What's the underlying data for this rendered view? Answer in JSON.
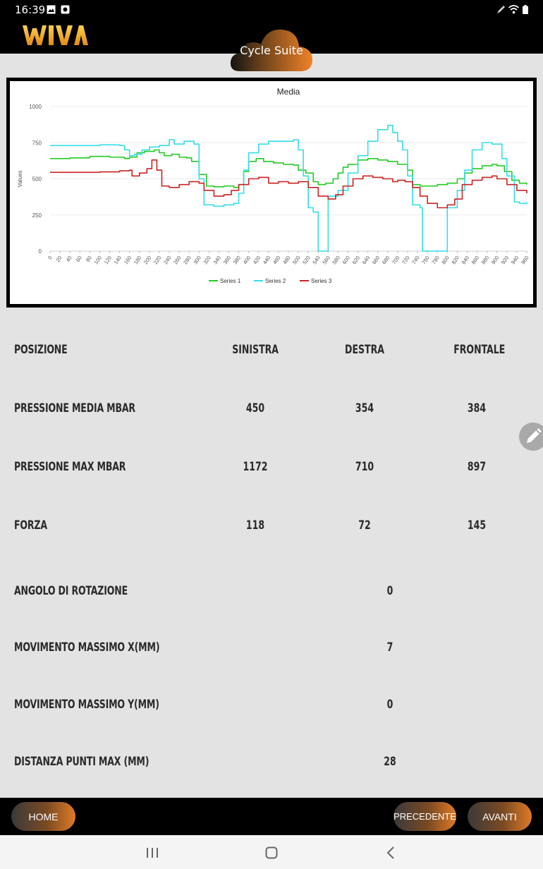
{
  "status_bar": {
    "time": "16:39",
    "left_icons": [
      "image-icon",
      "record-icon"
    ],
    "right_icons": [
      "pencil-icon",
      "wifi-icon",
      "battery-icon"
    ]
  },
  "header": {
    "logo_text": "WIVA",
    "app_badge": "Cycle Suite",
    "accent_color": "#f0a02a"
  },
  "chart_data": {
    "type": "line",
    "title": "Media",
    "ylabel": "Values",
    "xlabel": "",
    "ylim": [
      0,
      1000
    ],
    "yticks": [
      0,
      250,
      500,
      750,
      1000
    ],
    "xlim": [
      0,
      960
    ],
    "xticks": [
      0,
      20,
      40,
      60,
      80,
      100,
      120,
      140,
      160,
      180,
      200,
      220,
      240,
      260,
      280,
      300,
      320,
      340,
      360,
      380,
      400,
      420,
      440,
      460,
      480,
      500,
      520,
      540,
      560,
      580,
      600,
      620,
      640,
      660,
      680,
      700,
      720,
      740,
      760,
      780,
      800,
      820,
      840,
      860,
      880,
      900,
      920,
      940,
      960
    ],
    "grid": true,
    "legend_position": "bottom",
    "series": [
      {
        "name": "Series 1",
        "color": "#22cc22",
        "points": [
          [
            0,
            640
          ],
          [
            40,
            645
          ],
          [
            80,
            655
          ],
          [
            120,
            650
          ],
          [
            150,
            640
          ],
          [
            160,
            650
          ],
          [
            175,
            680
          ],
          [
            190,
            690
          ],
          [
            210,
            700
          ],
          [
            220,
            680
          ],
          [
            230,
            660
          ],
          [
            245,
            670
          ],
          [
            260,
            650
          ],
          [
            275,
            645
          ],
          [
            285,
            620
          ],
          [
            300,
            530
          ],
          [
            315,
            450
          ],
          [
            330,
            445
          ],
          [
            350,
            450
          ],
          [
            370,
            440
          ],
          [
            380,
            460
          ],
          [
            390,
            550
          ],
          [
            400,
            620
          ],
          [
            415,
            640
          ],
          [
            430,
            620
          ],
          [
            450,
            610
          ],
          [
            470,
            600
          ],
          [
            490,
            595
          ],
          [
            500,
            560
          ],
          [
            515,
            540
          ],
          [
            530,
            480
          ],
          [
            540,
            460
          ],
          [
            555,
            470
          ],
          [
            570,
            500
          ],
          [
            580,
            540
          ],
          [
            590,
            580
          ],
          [
            600,
            600
          ],
          [
            620,
            630
          ],
          [
            640,
            640
          ],
          [
            660,
            630
          ],
          [
            680,
            620
          ],
          [
            700,
            600
          ],
          [
            720,
            560
          ],
          [
            730,
            460
          ],
          [
            745,
            450
          ],
          [
            760,
            450
          ],
          [
            780,
            460
          ],
          [
            800,
            470
          ],
          [
            820,
            500
          ],
          [
            835,
            540
          ],
          [
            850,
            570
          ],
          [
            870,
            590
          ],
          [
            890,
            600
          ],
          [
            900,
            590
          ],
          [
            915,
            550
          ],
          [
            930,
            490
          ],
          [
            945,
            470
          ],
          [
            960,
            460
          ]
        ]
      },
      {
        "name": "Series 2",
        "color": "#33dde8",
        "points": [
          [
            0,
            730
          ],
          [
            60,
            730
          ],
          [
            100,
            735
          ],
          [
            130,
            735
          ],
          [
            140,
            730
          ],
          [
            150,
            700
          ],
          [
            160,
            660
          ],
          [
            170,
            670
          ],
          [
            185,
            700
          ],
          [
            200,
            720
          ],
          [
            220,
            730
          ],
          [
            240,
            770
          ],
          [
            250,
            740
          ],
          [
            270,
            760
          ],
          [
            290,
            740
          ],
          [
            300,
            500
          ],
          [
            310,
            320
          ],
          [
            330,
            310
          ],
          [
            350,
            320
          ],
          [
            370,
            330
          ],
          [
            380,
            400
          ],
          [
            390,
            560
          ],
          [
            400,
            680
          ],
          [
            420,
            740
          ],
          [
            440,
            760
          ],
          [
            470,
            760
          ],
          [
            490,
            770
          ],
          [
            500,
            700
          ],
          [
            510,
            520
          ],
          [
            520,
            300
          ],
          [
            530,
            270
          ],
          [
            540,
            0
          ],
          [
            555,
            0
          ],
          [
            560,
            380
          ],
          [
            580,
            420
          ],
          [
            600,
            540
          ],
          [
            620,
            660
          ],
          [
            640,
            760
          ],
          [
            660,
            840
          ],
          [
            680,
            870
          ],
          [
            690,
            820
          ],
          [
            700,
            760
          ],
          [
            710,
            700
          ],
          [
            720,
            520
          ],
          [
            730,
            320
          ],
          [
            745,
            300
          ],
          [
            750,
            0
          ],
          [
            790,
            0
          ],
          [
            800,
            300
          ],
          [
            820,
            420
          ],
          [
            835,
            560
          ],
          [
            850,
            700
          ],
          [
            870,
            750
          ],
          [
            890,
            740
          ],
          [
            910,
            640
          ],
          [
            920,
            520
          ],
          [
            935,
            340
          ],
          [
            945,
            330
          ],
          [
            960,
            340
          ]
        ]
      },
      {
        "name": "Series 3",
        "color": "#cc2222",
        "points": [
          [
            0,
            545
          ],
          [
            50,
            545
          ],
          [
            100,
            548
          ],
          [
            140,
            555
          ],
          [
            160,
            560
          ],
          [
            165,
            520
          ],
          [
            180,
            540
          ],
          [
            195,
            570
          ],
          [
            205,
            630
          ],
          [
            215,
            560
          ],
          [
            225,
            450
          ],
          [
            240,
            440
          ],
          [
            260,
            460
          ],
          [
            280,
            480
          ],
          [
            300,
            470
          ],
          [
            310,
            420
          ],
          [
            330,
            380
          ],
          [
            350,
            390
          ],
          [
            365,
            420
          ],
          [
            380,
            460
          ],
          [
            400,
            500
          ],
          [
            420,
            510
          ],
          [
            440,
            470
          ],
          [
            460,
            480
          ],
          [
            480,
            470
          ],
          [
            500,
            480
          ],
          [
            520,
            440
          ],
          [
            540,
            380
          ],
          [
            560,
            360
          ],
          [
            575,
            390
          ],
          [
            590,
            450
          ],
          [
            610,
            500
          ],
          [
            630,
            520
          ],
          [
            650,
            510
          ],
          [
            670,
            500
          ],
          [
            690,
            480
          ],
          [
            700,
            490
          ],
          [
            715,
            480
          ],
          [
            730,
            440
          ],
          [
            745,
            380
          ],
          [
            760,
            330
          ],
          [
            780,
            300
          ],
          [
            800,
            320
          ],
          [
            815,
            360
          ],
          [
            830,
            460
          ],
          [
            850,
            490
          ],
          [
            870,
            510
          ],
          [
            890,
            520
          ],
          [
            900,
            500
          ],
          [
            920,
            460
          ],
          [
            940,
            420
          ],
          [
            960,
            400
          ]
        ]
      }
    ]
  },
  "table": {
    "header": {
      "label": "POSIZIONE",
      "col1": "SINISTRA",
      "col2": "DESTRA",
      "col3": "FRONTALE"
    },
    "rows": [
      {
        "label": "PRESSIONE MEDIA MBAR",
        "col1": "450",
        "col2": "354",
        "col3": "384"
      },
      {
        "label": "PRESSIONE MAX MBAR",
        "col1": "1172",
        "col2": "710",
        "col3": "897"
      },
      {
        "label": "FORZA",
        "col1": "118",
        "col2": "72",
        "col3": "145"
      }
    ],
    "single_rows": [
      {
        "label": "ANGOLO DI ROTAZIONE",
        "value": "0"
      },
      {
        "label": "MOVIMENTO MASSIMO X(MM)",
        "value": "7"
      },
      {
        "label": "MOVIMENTO MASSIMO Y(MM)",
        "value": "0"
      },
      {
        "label": "DISTANZA PUNTI MAX (MM)",
        "value": "28"
      }
    ]
  },
  "edit_button_icon": "pencil-icon",
  "footer": {
    "home": "HOME",
    "previous": "PRECEDENTE",
    "next": "AVANTI"
  },
  "android_nav": [
    "recents-icon",
    "home-icon",
    "back-icon"
  ]
}
